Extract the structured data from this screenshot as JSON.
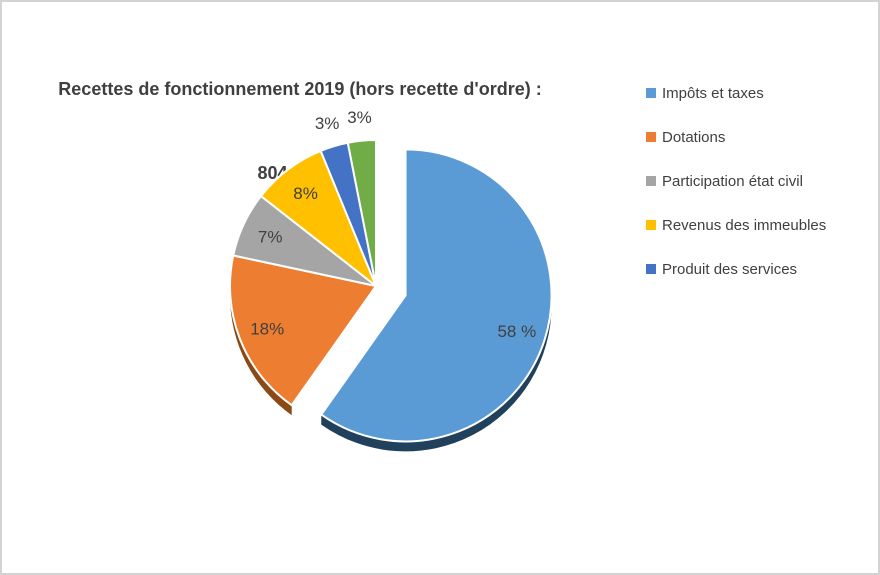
{
  "chart": {
    "title_line1": "Recettes de fonctionnement 2019 (hors recette d'ordre) :",
    "title_line2": "804 410  €"
  },
  "chart_data": {
    "type": "pie",
    "title": "Recettes de fonctionnement 2019 (hors recette d'ordre) : 804 410 €",
    "style": "3d-exploded-first-slice",
    "start_angle": "12 o'clock, clockwise",
    "legend_position": "right",
    "label_color": "#404040",
    "slices": [
      {
        "name": "Impôts et taxes",
        "value": 58,
        "label": "58 %",
        "color": "#5B9BD5",
        "side_color": "#20405C",
        "exploded": true,
        "label_pos": "inside",
        "in_legend": true
      },
      {
        "name": "Dotations",
        "value": 18,
        "label": "18%",
        "color": "#ED7D31",
        "side_color": "#8B4A15",
        "exploded": false,
        "label_pos": "inside",
        "in_legend": true
      },
      {
        "name": "Participation état civil",
        "value": 7,
        "label": "7%",
        "color": "#A5A5A5",
        "side_color": null,
        "exploded": false,
        "label_pos": "inside",
        "in_legend": true
      },
      {
        "name": "Revenus des immeubles",
        "value": 8,
        "label": "8%",
        "color": "#FFC000",
        "side_color": null,
        "exploded": false,
        "label_pos": "inside",
        "in_legend": true
      },
      {
        "name": "Produit des services",
        "value": 3,
        "label": "3%",
        "color": "#4472C4",
        "side_color": null,
        "exploded": false,
        "label_pos": "outside",
        "in_legend": true
      },
      {
        "name": null,
        "value": 3,
        "label": "3%",
        "color": "#70AD47",
        "side_color": null,
        "exploded": false,
        "label_pos": "outside",
        "in_legend": false
      }
    ]
  }
}
